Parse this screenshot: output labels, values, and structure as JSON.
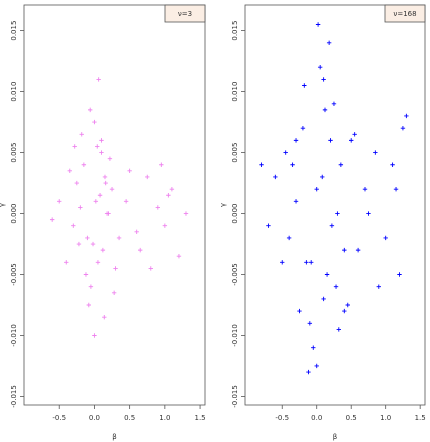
{
  "chart_data": [
    {
      "type": "scatter",
      "x_label": "β",
      "y_label": "γ",
      "legend": "top-right",
      "xlim": [
        -1.0,
        1.57
      ],
      "ylim": [
        -0.0157,
        0.0171
      ],
      "xticks": [
        -0.5,
        {
          "value": 0,
          "label": "0.0"
        },
        0.5,
        {
          "value": 1,
          "label": "1.0"
        },
        1.5
      ],
      "yticks": [
        -0.015,
        {
          "value": -0.01,
          "label": "-0.010"
        },
        -0.005,
        {
          "value": 0,
          "label": "0.000"
        },
        0.005,
        {
          "value": 0.01,
          "label": "0.010"
        },
        0.015
      ],
      "series": [
        {
          "name": "ν=3",
          "color": "#ee82ee",
          "x": [
            0.02,
            -0.1,
            0.15,
            -0.2,
            0.05,
            0.1,
            -0.05,
            0.25,
            -0.3,
            0.0,
            0.12,
            -0.15,
            0.3,
            -0.25,
            0.08,
            -0.08,
            0.18,
            -0.12,
            0.04,
            -0.02,
            0.22,
            -0.35,
            0.35,
            0.45,
            0.6,
            0.75,
            0.9,
            1.0,
            1.1,
            1.2,
            1.3,
            -0.5,
            -0.6,
            0.5,
            0.65,
            0.8,
            0.95,
            1.05,
            -0.4,
            0.28,
            -0.18,
            0.14,
            -0.06,
            0.06,
            0.2,
            -0.22,
            0.0,
            0.1,
            -0.28,
            0.16
          ],
          "values": [
            0.001,
            -0.002,
            0.003,
            0.0005,
            -0.004,
            0.006,
            -0.006,
            0.002,
            -0.001,
            0.0075,
            -0.003,
            0.004,
            -0.0045,
            0.0025,
            0.0015,
            -0.0075,
            0.0,
            -0.005,
            0.0055,
            -0.0025,
            0.0045,
            0.0035,
            -0.002,
            0.001,
            -0.0015,
            0.003,
            0.0005,
            -0.001,
            0.002,
            -0.0035,
            0.0,
            0.001,
            -0.0005,
            0.0035,
            -0.003,
            -0.0045,
            0.004,
            0.0015,
            -0.004,
            -0.0065,
            0.0065,
            -0.0085,
            0.0085,
            0.011,
            0.0,
            -0.0025,
            -0.01,
            0.005,
            0.0055,
            0.0025
          ]
        }
      ]
    },
    {
      "type": "scatter",
      "x_label": "β",
      "y_label": "γ",
      "legend": "top-right",
      "xlim": [
        -1.04,
        1.57
      ],
      "ylim": [
        -0.0157,
        0.0171
      ],
      "xticks": [
        -0.5,
        {
          "value": 0,
          "label": "0.0"
        },
        0.5,
        {
          "value": 1,
          "label": "1.0"
        },
        1.5
      ],
      "yticks": [
        -0.015,
        {
          "value": -0.01,
          "label": "-0.010"
        },
        -0.005,
        {
          "value": 0,
          "label": "0.000"
        },
        0.005,
        {
          "value": 0.01,
          "label": "0.010"
        },
        0.015
      ],
      "series": [
        {
          "name": "ν=168",
          "color": "#0000ff",
          "x": [
            0.0,
            -0.15,
            0.2,
            -0.3,
            0.1,
            0.25,
            -0.1,
            0.35,
            -0.4,
            0.05,
            0.15,
            -0.2,
            0.4,
            -0.35,
            0.08,
            -0.05,
            0.3,
            -0.25,
            0.12,
            -0.08,
            0.5,
            0.6,
            0.7,
            0.85,
            1.0,
            1.1,
            1.2,
            1.3,
            -0.6,
            -0.7,
            -0.5,
            0.45,
            0.55,
            0.9,
            1.25,
            -0.45,
            0.18,
            -0.12,
            0.02,
            0.22,
            -0.18,
            0.32,
            0.0,
            0.1,
            -0.3,
            0.28,
            0.75,
            1.15,
            -0.8,
            0.4
          ],
          "values": [
            0.002,
            -0.004,
            0.006,
            0.001,
            -0.007,
            0.009,
            -0.009,
            0.004,
            -0.002,
            0.012,
            -0.005,
            0.007,
            -0.008,
            0.004,
            0.003,
            -0.011,
            0.0,
            -0.008,
            0.0085,
            -0.004,
            0.006,
            -0.003,
            0.002,
            0.005,
            -0.002,
            0.004,
            -0.005,
            0.008,
            0.003,
            -0.001,
            -0.004,
            -0.0075,
            0.0065,
            -0.006,
            0.007,
            0.005,
            0.014,
            -0.013,
            0.0155,
            -0.001,
            0.0105,
            -0.0095,
            -0.0125,
            0.011,
            0.006,
            -0.006,
            0.0,
            0.002,
            0.004,
            -0.003
          ]
        }
      ]
    }
  ]
}
